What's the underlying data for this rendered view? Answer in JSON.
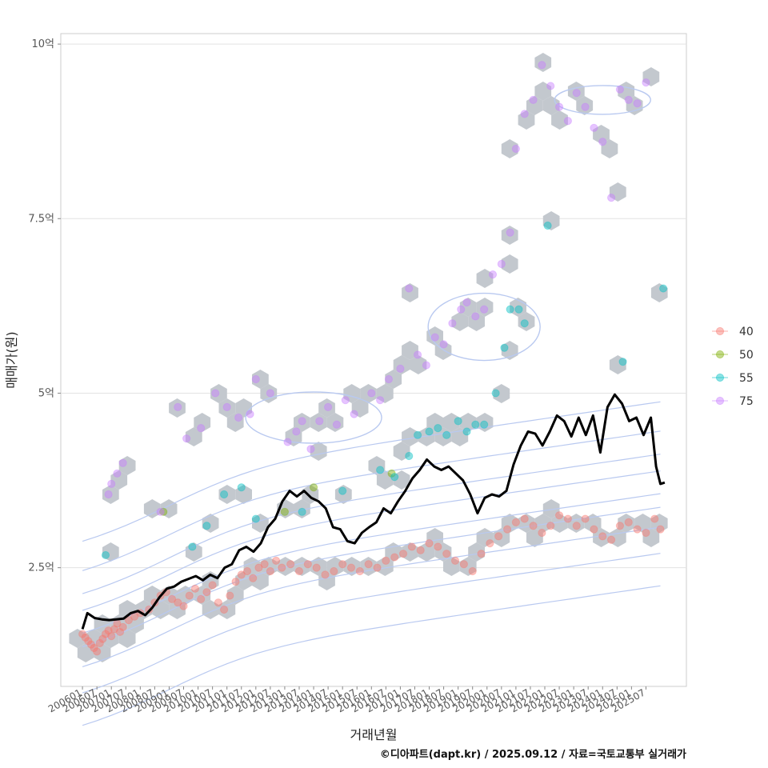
{
  "chart_data": {
    "type": "scatter",
    "xlabel": "거래년월",
    "ylabel": "매매가(원)",
    "caption": "©디아파트(dapt.kr) / 2025.09.12 / 자료=국토교통부 실거래가",
    "y_unit": "억",
    "ylim": [
      0.8,
      10.15
    ],
    "xlim": [
      2005.25,
      2026.9
    ],
    "y_ticks": [
      {
        "value": 2.5,
        "label": "2.5억"
      },
      {
        "value": 5,
        "label": "5억"
      },
      {
        "value": 7.5,
        "label": "7.5억"
      },
      {
        "value": 10,
        "label": "10억"
      }
    ],
    "x_ticks": [
      "200601",
      "200607",
      "200701",
      "200707",
      "200801",
      "200807",
      "200901",
      "200907",
      "201001",
      "201007",
      "201101",
      "201107",
      "201201",
      "201207",
      "201301",
      "201307",
      "201401",
      "201407",
      "201501",
      "201507",
      "201601",
      "201607",
      "201701",
      "201707",
      "201801",
      "201807",
      "201901",
      "201907",
      "202001",
      "202007",
      "202101",
      "202107",
      "202201",
      "202207",
      "202301",
      "202307",
      "202401",
      "202407",
      "202501",
      "202507"
    ],
    "legend": {
      "position": "right",
      "entries": [
        {
          "label": "40",
          "color": "#F8766D"
        },
        {
          "label": "50",
          "color": "#7CAE00"
        },
        {
          "label": "55",
          "color": "#00BFC4"
        },
        {
          "label": "75",
          "color": "#C77CFF"
        }
      ]
    },
    "average_line": {
      "name": "평균 매매가",
      "color": "#000000",
      "points": [
        [
          2006.0,
          1.62
        ],
        [
          2006.17,
          1.85
        ],
        [
          2006.42,
          1.78
        ],
        [
          2006.67,
          1.76
        ],
        [
          2006.92,
          1.75
        ],
        [
          2007.17,
          1.76
        ],
        [
          2007.42,
          1.77
        ],
        [
          2007.67,
          1.85
        ],
        [
          2007.92,
          1.88
        ],
        [
          2008.17,
          1.82
        ],
        [
          2008.42,
          1.93
        ],
        [
          2008.67,
          2.08
        ],
        [
          2008.92,
          2.2
        ],
        [
          2009.17,
          2.23
        ],
        [
          2009.42,
          2.3
        ],
        [
          2009.67,
          2.34
        ],
        [
          2009.92,
          2.38
        ],
        [
          2010.17,
          2.32
        ],
        [
          2010.42,
          2.4
        ],
        [
          2010.67,
          2.35
        ],
        [
          2010.92,
          2.5
        ],
        [
          2011.17,
          2.55
        ],
        [
          2011.42,
          2.75
        ],
        [
          2011.67,
          2.8
        ],
        [
          2011.92,
          2.73
        ],
        [
          2012.17,
          2.85
        ],
        [
          2012.42,
          3.08
        ],
        [
          2012.67,
          3.2
        ],
        [
          2012.92,
          3.45
        ],
        [
          2013.17,
          3.6
        ],
        [
          2013.42,
          3.52
        ],
        [
          2013.67,
          3.6
        ],
        [
          2013.92,
          3.5
        ],
        [
          2014.17,
          3.45
        ],
        [
          2014.42,
          3.35
        ],
        [
          2014.67,
          3.08
        ],
        [
          2014.92,
          3.05
        ],
        [
          2015.17,
          2.88
        ],
        [
          2015.42,
          2.85
        ],
        [
          2015.67,
          3.0
        ],
        [
          2015.92,
          3.08
        ],
        [
          2016.17,
          3.15
        ],
        [
          2016.42,
          3.35
        ],
        [
          2016.67,
          3.28
        ],
        [
          2016.92,
          3.45
        ],
        [
          2017.17,
          3.6
        ],
        [
          2017.42,
          3.78
        ],
        [
          2017.67,
          3.9
        ],
        [
          2017.92,
          4.05
        ],
        [
          2018.17,
          3.95
        ],
        [
          2018.42,
          3.9
        ],
        [
          2018.67,
          3.95
        ],
        [
          2018.92,
          3.85
        ],
        [
          2019.17,
          3.75
        ],
        [
          2019.42,
          3.55
        ],
        [
          2019.67,
          3.28
        ],
        [
          2019.92,
          3.5
        ],
        [
          2020.17,
          3.55
        ],
        [
          2020.42,
          3.52
        ],
        [
          2020.67,
          3.6
        ],
        [
          2020.92,
          3.98
        ],
        [
          2021.17,
          4.25
        ],
        [
          2021.42,
          4.45
        ],
        [
          2021.67,
          4.42
        ],
        [
          2021.92,
          4.25
        ],
        [
          2022.17,
          4.45
        ],
        [
          2022.42,
          4.68
        ],
        [
          2022.67,
          4.6
        ],
        [
          2022.92,
          4.38
        ],
        [
          2023.17,
          4.65
        ],
        [
          2023.42,
          4.4
        ],
        [
          2023.67,
          4.68
        ],
        [
          2023.92,
          4.15
        ],
        [
          2024.17,
          4.8
        ],
        [
          2024.42,
          4.98
        ],
        [
          2024.67,
          4.85
        ],
        [
          2024.92,
          4.6
        ],
        [
          2025.17,
          4.65
        ],
        [
          2025.42,
          4.4
        ],
        [
          2025.67,
          4.65
        ],
        [
          2025.85,
          3.95
        ],
        [
          2026.0,
          3.7
        ],
        [
          2026.15,
          3.72
        ]
      ]
    },
    "series": [
      {
        "name": "40",
        "color": "#F8766D",
        "points": [
          [
            2006.0,
            1.55
          ],
          [
            2006.1,
            1.5
          ],
          [
            2006.2,
            1.45
          ],
          [
            2006.3,
            1.4
          ],
          [
            2006.4,
            1.35
          ],
          [
            2006.5,
            1.3
          ],
          [
            2006.6,
            1.42
          ],
          [
            2006.7,
            1.48
          ],
          [
            2006.8,
            1.55
          ],
          [
            2006.9,
            1.6
          ],
          [
            2007.0,
            1.52
          ],
          [
            2007.1,
            1.62
          ],
          [
            2007.2,
            1.7
          ],
          [
            2007.3,
            1.58
          ],
          [
            2007.4,
            1.65
          ],
          [
            2007.6,
            1.75
          ],
          [
            2007.8,
            1.8
          ],
          [
            2008.0,
            1.85
          ],
          [
            2008.3,
            1.9
          ],
          [
            2008.5,
            2.0
          ],
          [
            2008.7,
            2.1
          ],
          [
            2008.9,
            2.15
          ],
          [
            2009.1,
            2.05
          ],
          [
            2009.3,
            2.0
          ],
          [
            2009.5,
            1.95
          ],
          [
            2009.7,
            2.1
          ],
          [
            2009.9,
            2.2
          ],
          [
            2010.1,
            2.05
          ],
          [
            2010.3,
            2.15
          ],
          [
            2010.5,
            2.25
          ],
          [
            2010.7,
            2.0
          ],
          [
            2010.9,
            1.9
          ],
          [
            2011.1,
            2.1
          ],
          [
            2011.3,
            2.3
          ],
          [
            2011.5,
            2.4
          ],
          [
            2011.7,
            2.45
          ],
          [
            2011.9,
            2.35
          ],
          [
            2012.1,
            2.5
          ],
          [
            2012.3,
            2.55
          ],
          [
            2012.5,
            2.45
          ],
          [
            2012.7,
            2.6
          ],
          [
            2012.9,
            2.5
          ],
          [
            2013.2,
            2.55
          ],
          [
            2013.5,
            2.45
          ],
          [
            2013.8,
            2.55
          ],
          [
            2014.1,
            2.5
          ],
          [
            2014.4,
            2.4
          ],
          [
            2014.7,
            2.45
          ],
          [
            2015.0,
            2.55
          ],
          [
            2015.3,
            2.5
          ],
          [
            2015.6,
            2.45
          ],
          [
            2015.9,
            2.55
          ],
          [
            2016.2,
            2.5
          ],
          [
            2016.5,
            2.6
          ],
          [
            2016.8,
            2.65
          ],
          [
            2017.1,
            2.7
          ],
          [
            2017.4,
            2.8
          ],
          [
            2017.7,
            2.75
          ],
          [
            2018.0,
            2.85
          ],
          [
            2018.3,
            2.8
          ],
          [
            2018.6,
            2.7
          ],
          [
            2018.9,
            2.6
          ],
          [
            2019.2,
            2.55
          ],
          [
            2019.5,
            2.45
          ],
          [
            2019.8,
            2.7
          ],
          [
            2020.1,
            2.85
          ],
          [
            2020.4,
            2.95
          ],
          [
            2020.7,
            3.05
          ],
          [
            2021.0,
            3.15
          ],
          [
            2021.3,
            3.2
          ],
          [
            2021.6,
            3.1
          ],
          [
            2021.9,
            3.0
          ],
          [
            2022.2,
            3.1
          ],
          [
            2022.5,
            3.25
          ],
          [
            2022.8,
            3.2
          ],
          [
            2023.1,
            3.1
          ],
          [
            2023.4,
            3.2
          ],
          [
            2023.7,
            3.05
          ],
          [
            2024.0,
            2.95
          ],
          [
            2024.3,
            2.9
          ],
          [
            2024.6,
            3.1
          ],
          [
            2024.9,
            3.15
          ],
          [
            2025.2,
            3.05
          ],
          [
            2025.5,
            3.0
          ],
          [
            2025.8,
            3.2
          ],
          [
            2026.0,
            3.05
          ]
        ]
      },
      {
        "name": "50",
        "color": "#7CAE00",
        "points": [
          [
            2008.8,
            3.3
          ],
          [
            2013.0,
            3.3
          ],
          [
            2014.0,
            3.65
          ],
          [
            2016.7,
            3.85
          ]
        ]
      },
      {
        "name": "55",
        "color": "#00BFC4",
        "points": [
          [
            2006.8,
            2.68
          ],
          [
            2009.8,
            2.8
          ],
          [
            2010.3,
            3.1
          ],
          [
            2010.9,
            3.55
          ],
          [
            2011.5,
            3.65
          ],
          [
            2012.0,
            3.2
          ],
          [
            2013.6,
            3.3
          ],
          [
            2015.0,
            3.6
          ],
          [
            2016.3,
            3.9
          ],
          [
            2016.8,
            3.8
          ],
          [
            2017.3,
            4.1
          ],
          [
            2017.6,
            4.4
          ],
          [
            2018.0,
            4.45
          ],
          [
            2018.3,
            4.5
          ],
          [
            2018.6,
            4.4
          ],
          [
            2019.0,
            4.6
          ],
          [
            2019.3,
            4.45
          ],
          [
            2019.6,
            4.55
          ],
          [
            2019.9,
            4.55
          ],
          [
            2020.3,
            5.0
          ],
          [
            2020.6,
            5.65
          ],
          [
            2020.8,
            6.2
          ],
          [
            2021.1,
            6.2
          ],
          [
            2021.3,
            6.0
          ],
          [
            2022.1,
            7.4
          ],
          [
            2024.7,
            5.45
          ],
          [
            2026.1,
            6.5
          ]
        ]
      },
      {
        "name": "75",
        "color": "#C77CFF",
        "points": [
          [
            2006.9,
            3.55
          ],
          [
            2007.0,
            3.7
          ],
          [
            2007.2,
            3.85
          ],
          [
            2007.4,
            4.0
          ],
          [
            2008.7,
            3.3
          ],
          [
            2009.3,
            4.8
          ],
          [
            2009.6,
            4.35
          ],
          [
            2010.1,
            4.5
          ],
          [
            2010.6,
            5.0
          ],
          [
            2011.0,
            4.8
          ],
          [
            2011.4,
            4.65
          ],
          [
            2011.8,
            4.7
          ],
          [
            2012.0,
            5.2
          ],
          [
            2012.5,
            5.0
          ],
          [
            2013.1,
            4.3
          ],
          [
            2013.4,
            4.45
          ],
          [
            2013.6,
            4.6
          ],
          [
            2013.9,
            4.2
          ],
          [
            2014.2,
            4.6
          ],
          [
            2014.5,
            4.8
          ],
          [
            2014.8,
            4.55
          ],
          [
            2015.1,
            4.9
          ],
          [
            2015.4,
            4.7
          ],
          [
            2016.0,
            5.0
          ],
          [
            2016.3,
            4.9
          ],
          [
            2016.6,
            5.2
          ],
          [
            2017.0,
            5.35
          ],
          [
            2017.3,
            6.5
          ],
          [
            2017.6,
            5.55
          ],
          [
            2017.9,
            5.4
          ],
          [
            2018.2,
            5.8
          ],
          [
            2018.5,
            5.7
          ],
          [
            2018.8,
            6.0
          ],
          [
            2019.1,
            6.2
          ],
          [
            2019.3,
            6.3
          ],
          [
            2019.6,
            6.1
          ],
          [
            2019.9,
            6.2
          ],
          [
            2020.2,
            6.7
          ],
          [
            2020.5,
            6.85
          ],
          [
            2020.8,
            7.3
          ],
          [
            2021.0,
            8.5
          ],
          [
            2021.3,
            9.0
          ],
          [
            2021.6,
            9.2
          ],
          [
            2021.9,
            9.7
          ],
          [
            2022.2,
            9.4
          ],
          [
            2022.5,
            9.1
          ],
          [
            2022.8,
            8.9
          ],
          [
            2023.1,
            9.3
          ],
          [
            2023.4,
            9.1
          ],
          [
            2023.7,
            8.8
          ],
          [
            2024.0,
            8.6
          ],
          [
            2024.3,
            7.8
          ],
          [
            2024.6,
            9.35
          ],
          [
            2024.9,
            9.2
          ],
          [
            2025.2,
            9.15
          ],
          [
            2025.5,
            9.45
          ]
        ]
      }
    ]
  }
}
